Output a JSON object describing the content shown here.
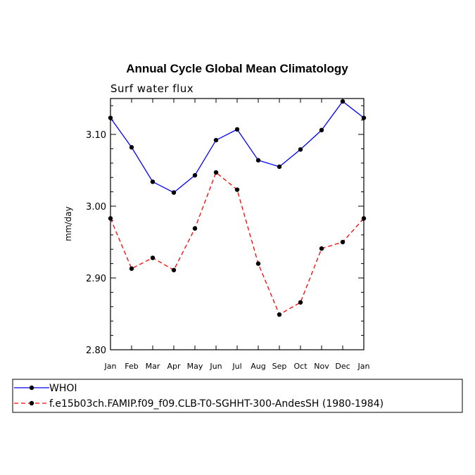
{
  "chart_data": {
    "type": "line",
    "title": "Annual Cycle Global Mean Climatology",
    "subtitle": "Surf water flux",
    "xlabel": "",
    "ylabel": "mm/day",
    "categories": [
      "Jan",
      "Feb",
      "Mar",
      "Apr",
      "May",
      "Jun",
      "Jul",
      "Aug",
      "Sep",
      "Oct",
      "Nov",
      "Dec",
      "Jan"
    ],
    "ylim": [
      2.8,
      3.15
    ],
    "yticks": [
      2.8,
      2.9,
      3.0,
      3.1
    ],
    "ytick_labels": [
      "2.80",
      "2.90",
      "3.00",
      "3.10"
    ],
    "grid": false,
    "legend_position": "bottom",
    "series": [
      {
        "name": "WHOI",
        "color": "#0000ff",
        "dashed": false,
        "values": [
          3.123,
          3.082,
          3.034,
          3.019,
          3.043,
          3.092,
          3.107,
          3.064,
          3.055,
          3.079,
          3.106,
          3.146,
          3.123
        ]
      },
      {
        "name": "f.e15b03ch.FAMIP.f09_f09.CLB-T0-SGHHT-300-AndesSH (1980-1984)",
        "color": "#ff0000",
        "dashed": true,
        "values": [
          2.983,
          2.913,
          2.928,
          2.911,
          2.969,
          3.047,
          3.023,
          2.92,
          2.849,
          2.866,
          2.941,
          2.95,
          2.983
        ]
      }
    ]
  }
}
